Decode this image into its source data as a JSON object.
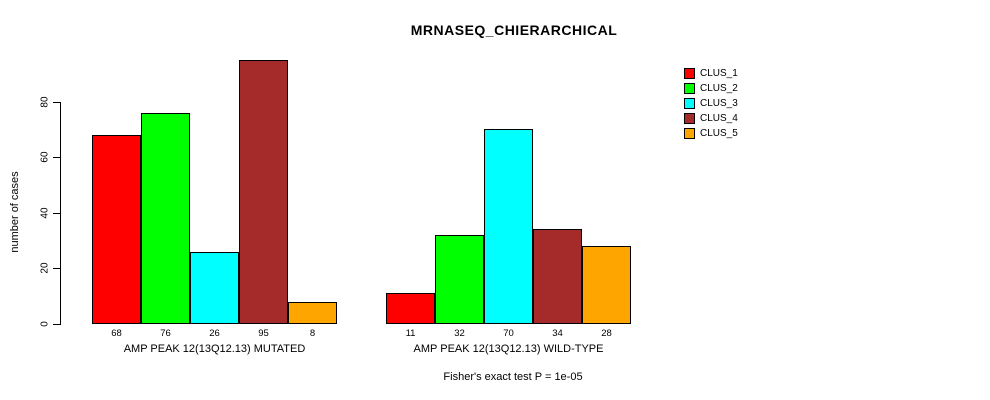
{
  "title": "MRNASEQ_CHIERARCHICAL",
  "y_axis": {
    "label": "number of cases",
    "ticks": [
      0,
      20,
      40,
      60,
      80
    ]
  },
  "legend": {
    "items": [
      {
        "label": "CLUS_1",
        "color": "#FF0000"
      },
      {
        "label": "CLUS_2",
        "color": "#00FF00"
      },
      {
        "label": "CLUS_3",
        "color": "#00FFFF"
      },
      {
        "label": "CLUS_4",
        "color": "#A52A2A"
      },
      {
        "label": "CLUS_5",
        "color": "#FFA500"
      }
    ]
  },
  "footer": "Fisher's exact test P = 1e-05",
  "chart_data": {
    "type": "bar",
    "title": "MRNASEQ_CHIERARCHICAL",
    "xlabel": "",
    "ylabel": "number of cases",
    "ylim": [
      0,
      95
    ],
    "yticks": [
      0,
      20,
      40,
      60,
      80
    ],
    "grid": false,
    "legend_position": "top-right",
    "bar_value_labels_shown": true,
    "categories": [
      "AMP PEAK 12(13Q12.13) MUTATED",
      "AMP PEAK 12(13Q12.13) WILD-TYPE"
    ],
    "series": [
      {
        "name": "CLUS_1",
        "color": "#FF0000",
        "values": [
          68,
          11
        ]
      },
      {
        "name": "CLUS_2",
        "color": "#00FF00",
        "values": [
          76,
          32
        ]
      },
      {
        "name": "CLUS_3",
        "color": "#00FFFF",
        "values": [
          26,
          70
        ]
      },
      {
        "name": "CLUS_4",
        "color": "#A52A2A",
        "values": [
          95,
          34
        ]
      },
      {
        "name": "CLUS_5",
        "color": "#FFA500",
        "values": [
          8,
          28
        ]
      }
    ],
    "annotation": "Fisher's exact test P = 1e-05"
  }
}
